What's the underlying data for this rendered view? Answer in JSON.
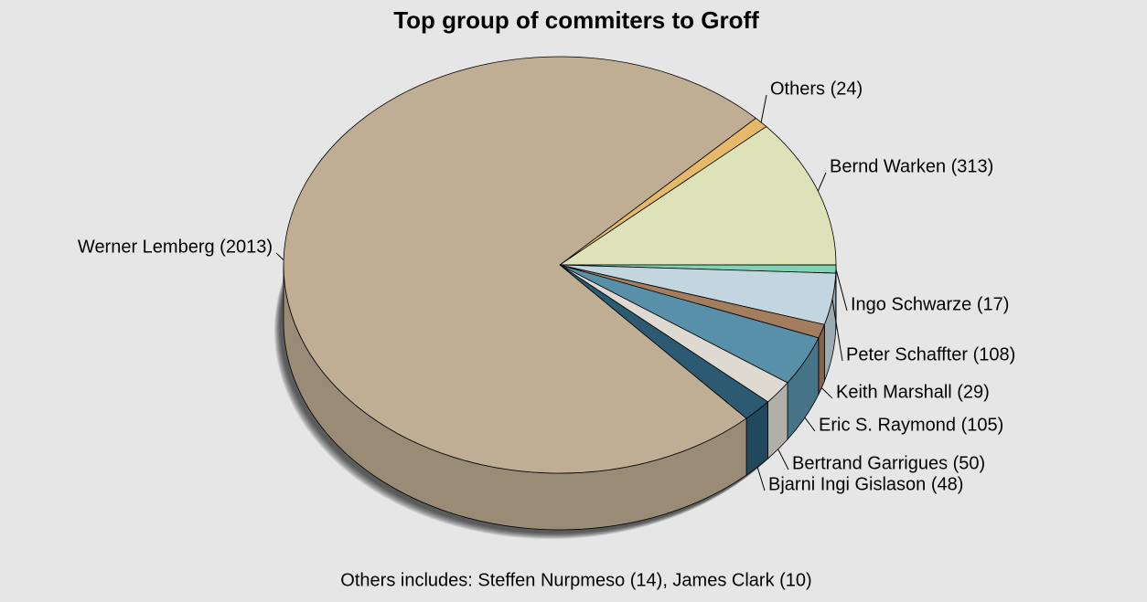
{
  "chart_data": {
    "type": "pie",
    "title": "Top group of commiters to Groff",
    "note": "Others includes: Steffen Nurpmeso (14), James Clark (10)",
    "categories": [
      "Others (24)",
      "Bernd Warken (313)",
      "Ingo Schwarze (17)",
      "Peter Schaffter (108)",
      "Keith Marshall (29)",
      "Eric S. Raymond (105)",
      "Bertrand Garrigues (50)",
      "Bjarni Ingi Gislason (48)",
      "Werner Lemberg (2013)"
    ],
    "values": [
      24,
      313,
      17,
      108,
      29,
      105,
      50,
      48,
      2013
    ],
    "colors": [
      "#e6b96a",
      "#dde2b8",
      "#7ed3b4",
      "#c3d5de",
      "#a47c5e",
      "#5790a8",
      "#dedad2",
      "#2b5a72",
      "#c0ae94"
    ]
  }
}
